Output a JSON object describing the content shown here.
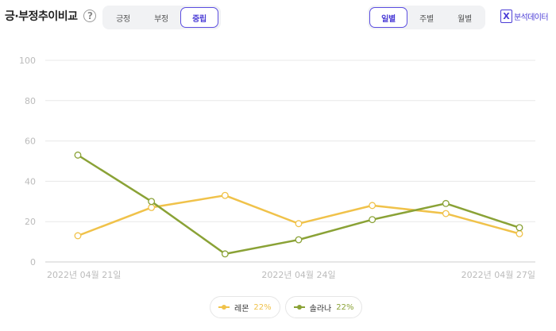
{
  "header": {
    "title": "긍·부정추이비교",
    "help": "?"
  },
  "sentiment_tabs": [
    {
      "label": "긍정",
      "active": false
    },
    {
      "label": "부정",
      "active": false
    },
    {
      "label": "중립",
      "active": true
    }
  ],
  "period_tabs": [
    {
      "label": "일별",
      "active": true
    },
    {
      "label": "주별",
      "active": false
    },
    {
      "label": "월별",
      "active": false
    }
  ],
  "export": {
    "icon": "excel-icon",
    "icon_glyph": "X",
    "label": "분석데이터"
  },
  "colors": {
    "accent": "#4b3dd6",
    "series1": "#f0c24a",
    "series2": "#8aa236",
    "grid": "#e8e8e8",
    "tick": "#bbbbbb"
  },
  "chart_data": {
    "type": "line",
    "x": [
      "2022-04-21",
      "2022-04-22",
      "2022-04-23",
      "2022-04-24",
      "2022-04-25",
      "2022-04-26",
      "2022-04-27"
    ],
    "x_tick_labels": [
      {
        "index": 0,
        "label": "2022년 04월 21일"
      },
      {
        "index": 3,
        "label": "2022년 04월 24일"
      },
      {
        "index": 6,
        "label": "2022년 04월 27일"
      }
    ],
    "ylim": [
      0,
      100
    ],
    "yticks": [
      0,
      20,
      40,
      60,
      80,
      100
    ],
    "grid": true,
    "legend_position": "bottom",
    "series": [
      {
        "name": "레몬",
        "share": "22%",
        "color": "#f0c24a",
        "values": [
          13,
          27,
          33,
          19,
          28,
          24,
          14
        ]
      },
      {
        "name": "솔라나",
        "share": "22%",
        "color": "#8aa236",
        "values": [
          53,
          30,
          4,
          11,
          21,
          29,
          17
        ]
      }
    ]
  }
}
